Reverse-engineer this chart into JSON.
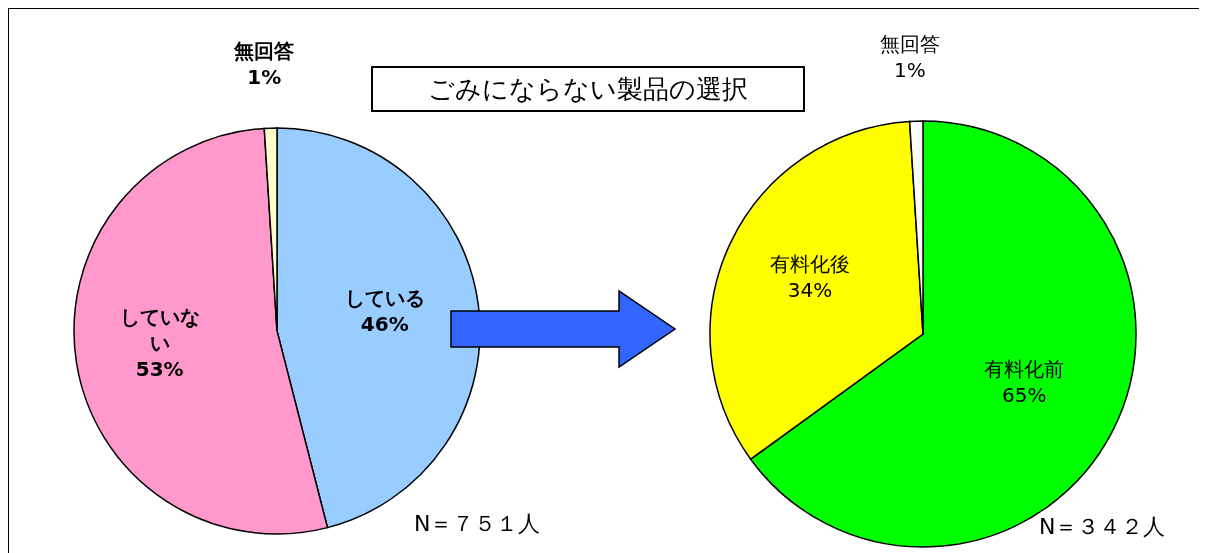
{
  "chart_data": [
    {
      "type": "pie",
      "title": "ごみにならない製品の選択",
      "categories": [
        "している",
        "していない",
        "無回答"
      ],
      "values": [
        46,
        53,
        1
      ],
      "colors": [
        "#99ccff",
        "#ff99cc",
        "#ffffcc"
      ],
      "value_labels": [
        "46%",
        "53%",
        "1%"
      ],
      "legend": false,
      "annotations": [
        "N＝７５１人"
      ]
    },
    {
      "type": "pie",
      "categories": [
        "有料化前",
        "有料化後",
        "無回答"
      ],
      "values": [
        65,
        34,
        1
      ],
      "colors": [
        "#00ff00",
        "#ffff00",
        "#ffffff"
      ],
      "value_labels": [
        "65%",
        "34%",
        "1%"
      ],
      "legend": false,
      "annotations": [
        "N＝３４２人"
      ]
    }
  ]
}
